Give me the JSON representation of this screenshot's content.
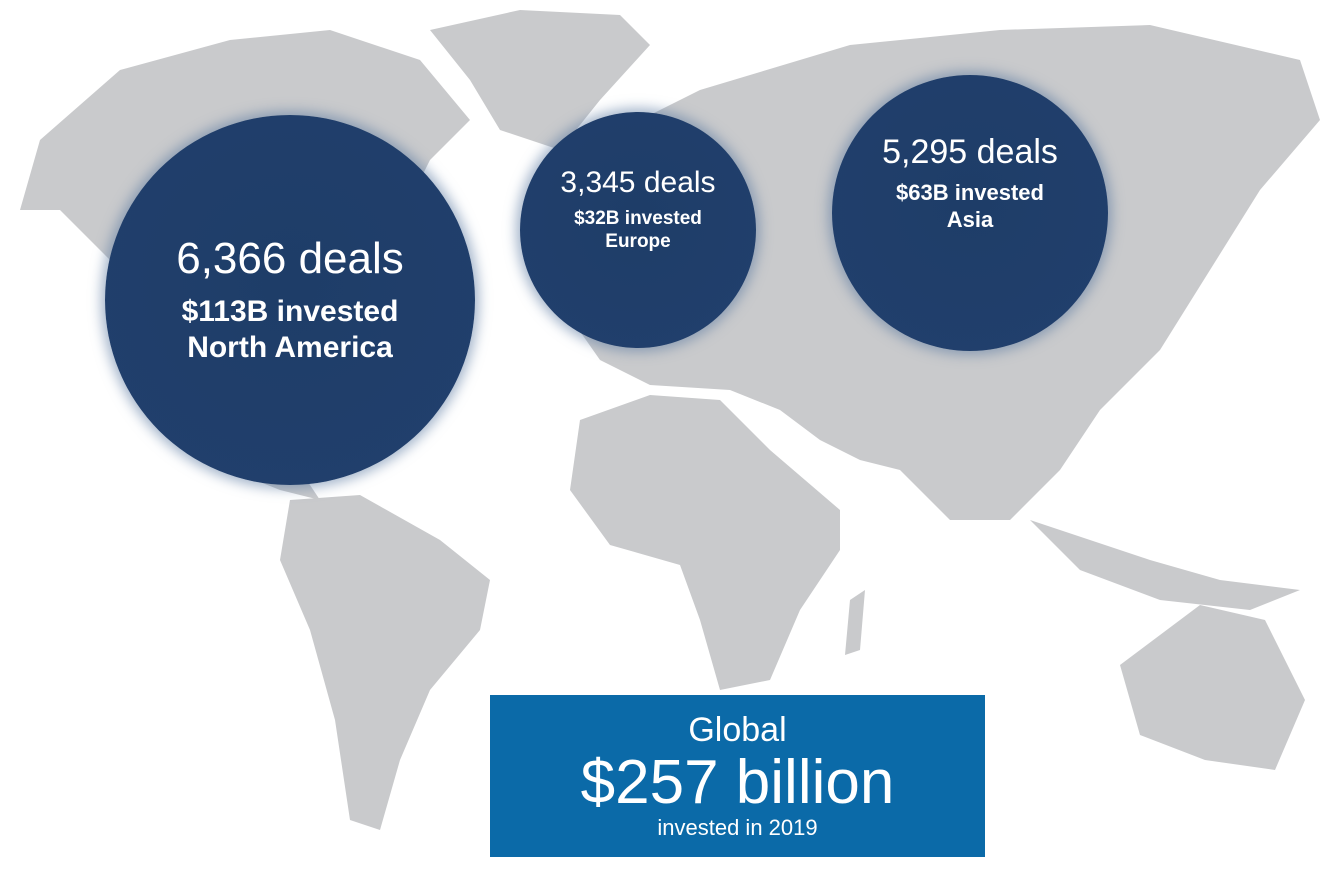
{
  "regions": [
    {
      "deals": "6,366 deals",
      "invested": "$113B invested",
      "name": "North America"
    },
    {
      "deals": "3,345 deals",
      "invested": "$32B invested",
      "name": "Europe"
    },
    {
      "deals": "5,295 deals",
      "invested": "$63B invested",
      "name": "Asia"
    }
  ],
  "global": {
    "label": "Global",
    "amount": "$257 billion",
    "note": "invested in 2019"
  }
}
